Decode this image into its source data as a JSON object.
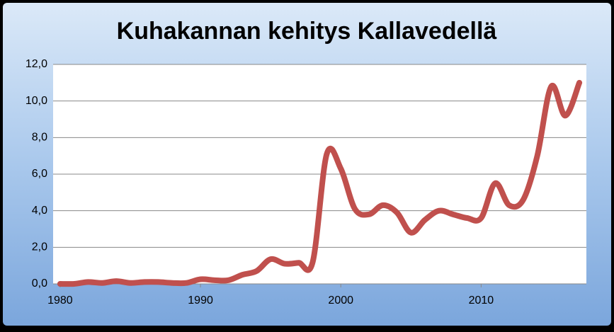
{
  "chart_data": {
    "type": "line",
    "title": "Kuhakannan kehitys Kallavedellä",
    "x": [
      1980,
      1981,
      1982,
      1983,
      1984,
      1985,
      1986,
      1987,
      1988,
      1989,
      1990,
      1991,
      1992,
      1993,
      1994,
      1995,
      1996,
      1997,
      1998,
      1999,
      2000,
      2001,
      2002,
      2003,
      2004,
      2005,
      2006,
      2007,
      2008,
      2009,
      2010,
      2011,
      2012,
      2013,
      2014,
      2015,
      2016,
      2017
    ],
    "series": [
      {
        "color": "#c0504d",
        "values": [
          0.0,
          0.0,
          0.1,
          0.05,
          0.15,
          0.05,
          0.1,
          0.1,
          0.05,
          0.05,
          0.25,
          0.2,
          0.2,
          0.5,
          0.7,
          1.35,
          1.1,
          1.15,
          1.2,
          7.1,
          6.3,
          4.1,
          3.8,
          4.3,
          3.9,
          2.8,
          3.5,
          4.0,
          3.8,
          3.6,
          3.6,
          5.5,
          4.3,
          4.6,
          7.0,
          10.8,
          9.2,
          11.0
        ]
      }
    ],
    "xlim": [
      1979.5,
      2017.5
    ],
    "xticks": [
      1980,
      1990,
      2000,
      2010
    ],
    "ylim": [
      0,
      12
    ],
    "yticks": [
      {
        "value": 0,
        "label": "0,0"
      },
      {
        "value": 2,
        "label": "2,0"
      },
      {
        "value": 4,
        "label": "4,0"
      },
      {
        "value": 6,
        "label": "6,0"
      },
      {
        "value": 8,
        "label": "8,0"
      },
      {
        "value": 10,
        "label": "10,0"
      },
      {
        "value": 12,
        "label": "12,0"
      }
    ],
    "grid": true
  }
}
